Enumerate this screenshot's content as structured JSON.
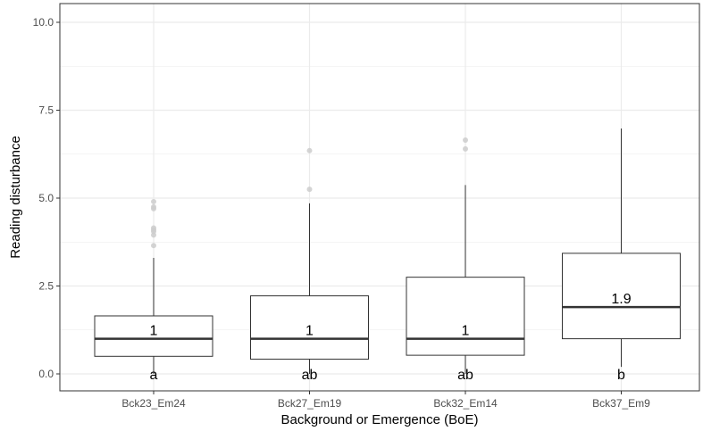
{
  "chart_data": {
    "type": "boxplot",
    "xlabel": "Background or Emergence (BoE)",
    "ylabel": "Reading disturbance",
    "ylim": [
      0,
      10
    ],
    "yticks": [
      "0.0",
      "2.5",
      "5.0",
      "7.5",
      "10.0"
    ],
    "grid": true,
    "categories": [
      "Bck23_Em24",
      "Bck27_Em19",
      "Bck32_Em14",
      "Bck37_Em9"
    ],
    "boxes": [
      {
        "category": "Bck23_Em24",
        "q1": 0.5,
        "median": 1.0,
        "q3": 1.65,
        "whisker_low": 0.0,
        "whisker_high": 3.3,
        "outliers": [
          3.65,
          3.95,
          4.05,
          4.1,
          4.15,
          4.7,
          4.75,
          4.9
        ],
        "median_label": "1",
        "group_letter": "a"
      },
      {
        "category": "Bck27_Em19",
        "q1": 0.42,
        "median": 1.0,
        "q3": 2.22,
        "whisker_low": 0.0,
        "whisker_high": 4.85,
        "outliers": [
          5.25,
          6.35
        ],
        "median_label": "1",
        "group_letter": "ab"
      },
      {
        "category": "Bck32_Em14",
        "q1": 0.53,
        "median": 1.0,
        "q3": 2.75,
        "whisker_low": 0.0,
        "whisker_high": 5.37,
        "outliers": [
          6.4,
          6.65
        ],
        "median_label": "1",
        "group_letter": "ab"
      },
      {
        "category": "Bck37_Em9",
        "q1": 1.0,
        "median": 1.9,
        "q3": 3.43,
        "whisker_low": 0.2,
        "whisker_high": 6.98,
        "outliers": [],
        "median_label": "1.9",
        "group_letter": "b"
      }
    ],
    "colors": {
      "box_fill": "#ffffff",
      "box_stroke": "#333333",
      "median": "#333333",
      "outlier": "#cccccc",
      "grid": "#ebebeb",
      "panel_border": "#333333"
    }
  }
}
